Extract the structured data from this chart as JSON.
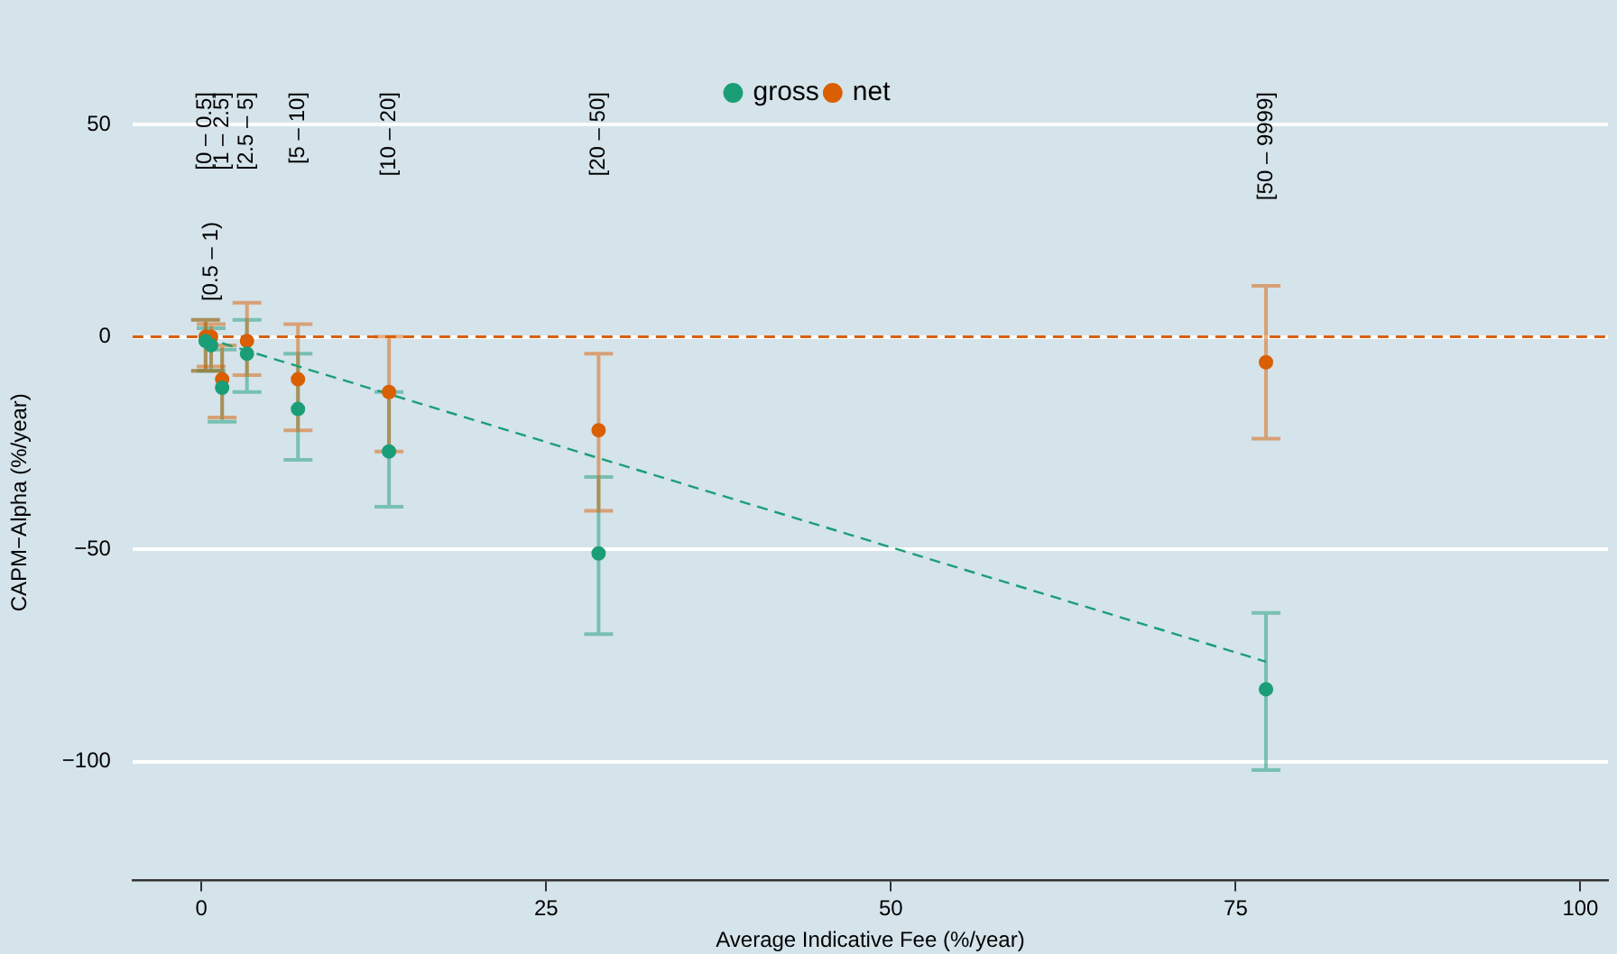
{
  "chart_data": {
    "type": "scatter",
    "xlabel": "Average Indicative Fee (%/year)",
    "ylabel": "CAPM−Alpha (%/year)",
    "xlim": [
      -5,
      102
    ],
    "xticks": [
      0,
      25,
      50,
      75,
      100
    ],
    "ylim": [
      -128,
      50
    ],
    "yticks": [
      {
        "value": -100,
        "label": "−100"
      },
      {
        "value": -50,
        "label": "−50"
      },
      0,
      50
    ],
    "grid": "y",
    "legend": "top",
    "marker": "circle",
    "series": [
      {
        "name": "gross",
        "color": "#1b9e77",
        "x": [
          0.3,
          0.7,
          1.5,
          3.3,
          7,
          13.6,
          28.8,
          77.2
        ],
        "values": [
          -1,
          -2,
          -12,
          -4,
          -17,
          -27,
          -51,
          -83
        ],
        "errors": [
          [
            -8,
            4
          ],
          [
            -8,
            2
          ],
          [
            -20,
            -3
          ],
          [
            -13,
            4
          ],
          [
            -29,
            -4
          ],
          [
            -40,
            -13
          ],
          [
            -70,
            -33
          ],
          [
            -102,
            -65
          ]
        ]
      },
      {
        "name": "net",
        "color": "#d95f02",
        "x": [
          0.3,
          0.7,
          1.5,
          3.3,
          7,
          13.6,
          28.8,
          77.2
        ],
        "values": [
          0,
          0,
          -10,
          -1,
          -10,
          -13,
          -22,
          -6
        ],
        "errors": [
          [
            -8,
            4
          ],
          [
            -7,
            3
          ],
          [
            -19,
            -2
          ],
          [
            -9,
            8
          ],
          [
            -22,
            3
          ],
          [
            -27,
            0
          ],
          [
            -41,
            -4
          ],
          [
            -24,
            12
          ]
        ]
      },
      {
        "type": "line",
        "color": "#1b9e77",
        "line_style": "dashed",
        "marker": "none",
        "x": [
          1.5,
          77.2
        ],
        "values": [
          -1.5,
          -76.5
        ]
      }
    ],
    "ref_lines": [
      {
        "axis": "y",
        "value": 0,
        "color": "#d95f02",
        "line_style": "dashed"
      }
    ],
    "annotations": [
      "[0 – 0.5]",
      "[0.5 – 1)",
      "[1 – 2.5]",
      "[2.5 – 5]",
      "[5 – 10]",
      "[10 – 20]",
      "[20 – 50]",
      "[50 – 9999]"
    ]
  }
}
